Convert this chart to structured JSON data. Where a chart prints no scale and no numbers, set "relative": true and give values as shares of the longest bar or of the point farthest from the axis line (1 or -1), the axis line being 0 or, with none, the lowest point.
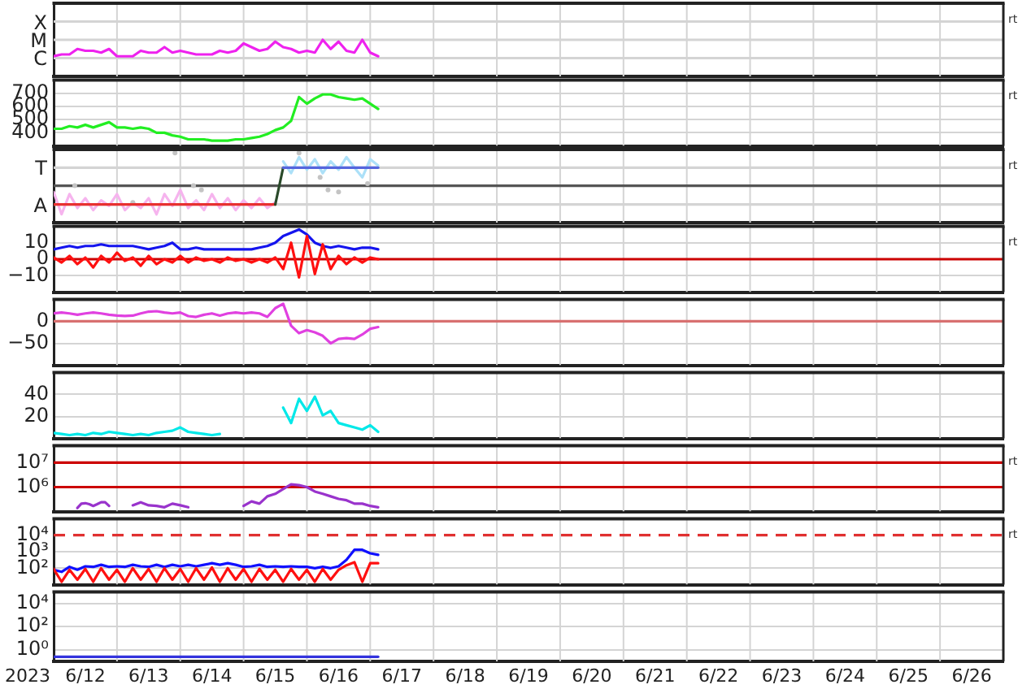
{
  "chart_data": [
    {
      "type": "line",
      "relative": true,
      "x": [
        "2023-06-12T00:00",
        "2023-06-12T03:00",
        "2023-06-12T06:00",
        "2023-06-12T09:00",
        "2023-06-12T12:00",
        "2023-06-12T15:00",
        "2023-06-12T18:00",
        "2023-06-12T21:00",
        "2023-06-13T00:00",
        "2023-06-13T03:00",
        "2023-06-13T06:00",
        "2023-06-13T09:00",
        "2023-06-13T12:00",
        "2023-06-13T15:00",
        "2023-06-13T18:00",
        "2023-06-13T21:00",
        "2023-06-14T00:00",
        "2023-06-14T03:00",
        "2023-06-14T06:00",
        "2023-06-14T09:00",
        "2023-06-14T12:00",
        "2023-06-14T15:00",
        "2023-06-14T18:00",
        "2023-06-14T21:00",
        "2023-06-15T00:00",
        "2023-06-15T03:00",
        "2023-06-15T06:00",
        "2023-06-15T09:00",
        "2023-06-15T12:00",
        "2023-06-15T15:00",
        "2023-06-15T18:00",
        "2023-06-15T21:00",
        "2023-06-16T00:00",
        "2023-06-16T03:00",
        "2023-06-16T06:00",
        "2023-06-16T09:00",
        "2023-06-16T12:00",
        "2023-06-16T15:00",
        "2023-06-16T18:00",
        "2023-06-16T21:00",
        "2023-06-17T00:00",
        "2023-06-17T03:00"
      ],
      "series": [
        {
          "color": "#ee22ee",
          "values": [
            0.55,
            0.6,
            0.6,
            0.75,
            0.7,
            0.7,
            0.65,
            0.75,
            0.55,
            0.55,
            0.55,
            0.7,
            0.65,
            0.65,
            0.8,
            0.65,
            0.7,
            0.65,
            0.6,
            0.6,
            0.6,
            0.7,
            0.65,
            0.7,
            0.9,
            0.8,
            0.7,
            0.75,
            0.95,
            0.8,
            0.75,
            0.65,
            0.7,
            0.65,
            1,
            0.75,
            0.95,
            0.7,
            0.65,
            1,
            0.65,
            0.55
          ]
        }
      ],
      "xlim": [
        "2023-06-12",
        "2023-06-27"
      ],
      "xticks": [
        {
          "value": "2023-06-13",
          "label": null
        },
        {
          "value": "2023-06-14",
          "label": null
        },
        {
          "value": "2023-06-15",
          "label": null
        },
        {
          "value": "2023-06-16",
          "label": null
        },
        {
          "value": "2023-06-17",
          "label": null
        },
        {
          "value": "2023-06-18",
          "label": null
        },
        {
          "value": "2023-06-19",
          "label": null
        },
        {
          "value": "2023-06-20",
          "label": null
        },
        {
          "value": "2023-06-21",
          "label": null
        },
        {
          "value": "2023-06-22",
          "label": null
        },
        {
          "value": "2023-06-23",
          "label": null
        },
        {
          "value": "2023-06-24",
          "label": null
        },
        {
          "value": "2023-06-25",
          "label": null
        },
        {
          "value": "2023-06-26",
          "label": null
        }
      ],
      "ref_lines": [
        {
          "axis": "y",
          "value": 1.5,
          "label": "X",
          "color": "#d4d4d4"
        },
        {
          "axis": "y",
          "value": 1,
          "label": "M",
          "color": "#d4d4d4"
        },
        {
          "axis": "y",
          "value": 0.5,
          "label": "C",
          "color": "#d4d4d4"
        }
      ],
      "grid": "x",
      "tick_labels": false,
      "annotations": [
        "rt"
      ]
    },
    {
      "type": "line",
      "x": [
        "2023-06-12T00:00",
        "2023-06-12T03:00",
        "2023-06-12T06:00",
        "2023-06-12T09:00",
        "2023-06-12T12:00",
        "2023-06-12T15:00",
        "2023-06-12T18:00",
        "2023-06-12T21:00",
        "2023-06-13T00:00",
        "2023-06-13T03:00",
        "2023-06-13T06:00",
        "2023-06-13T09:00",
        "2023-06-13T12:00",
        "2023-06-13T15:00",
        "2023-06-13T18:00",
        "2023-06-13T21:00",
        "2023-06-14T00:00",
        "2023-06-14T03:00",
        "2023-06-14T06:00",
        "2023-06-14T09:00",
        "2023-06-14T12:00",
        "2023-06-14T15:00",
        "2023-06-14T18:00",
        "2023-06-14T21:00",
        "2023-06-15T00:00",
        "2023-06-15T03:00",
        "2023-06-15T06:00",
        "2023-06-15T09:00",
        "2023-06-15T12:00",
        "2023-06-15T15:00",
        "2023-06-15T18:00",
        "2023-06-15T21:00",
        "2023-06-16T00:00",
        "2023-06-16T03:00",
        "2023-06-16T06:00",
        "2023-06-16T09:00",
        "2023-06-16T12:00",
        "2023-06-16T15:00",
        "2023-06-16T18:00",
        "2023-06-16T21:00",
        "2023-06-17T00:00",
        "2023-06-17T03:00"
      ],
      "series": [
        {
          "color": "#22ee22",
          "values": [
            430,
            430,
            450,
            440,
            460,
            440,
            460,
            480,
            440,
            440,
            430,
            440,
            430,
            400,
            400,
            380,
            370,
            350,
            350,
            350,
            340,
            340,
            340,
            350,
            350,
            360,
            370,
            390,
            420,
            440,
            490,
            670,
            620,
            660,
            690,
            690,
            670,
            660,
            650,
            660,
            620,
            580
          ]
        }
      ],
      "xlim": [
        "2023-06-12",
        "2023-06-27"
      ],
      "xticks": [
        {
          "value": "2023-06-13",
          "label": null
        },
        {
          "value": "2023-06-14",
          "label": null
        },
        {
          "value": "2023-06-15",
          "label": null
        },
        {
          "value": "2023-06-16",
          "label": null
        },
        {
          "value": "2023-06-17",
          "label": null
        },
        {
          "value": "2023-06-18",
          "label": null
        },
        {
          "value": "2023-06-19",
          "label": null
        },
        {
          "value": "2023-06-20",
          "label": null
        },
        {
          "value": "2023-06-21",
          "label": null
        },
        {
          "value": "2023-06-22",
          "label": null
        },
        {
          "value": "2023-06-23",
          "label": null
        },
        {
          "value": "2023-06-24",
          "label": null
        },
        {
          "value": "2023-06-25",
          "label": null
        },
        {
          "value": "2023-06-26",
          "label": null
        }
      ],
      "ylim": [
        300,
        800
      ],
      "yticks": [
        700,
        600,
        500,
        400
      ],
      "grid": true,
      "tick_labels": "y",
      "annotations": [
        "rt"
      ]
    },
    {
      "type": "line",
      "relative": true,
      "x": [
        "2023-06-12T00:00",
        "2023-06-12T03:00",
        "2023-06-12T06:00",
        "2023-06-12T09:00",
        "2023-06-12T12:00",
        "2023-06-12T15:00",
        "2023-06-12T18:00",
        "2023-06-12T21:00",
        "2023-06-13T00:00",
        "2023-06-13T03:00",
        "2023-06-13T06:00",
        "2023-06-13T09:00",
        "2023-06-13T12:00",
        "2023-06-13T15:00",
        "2023-06-13T18:00",
        "2023-06-13T21:00",
        "2023-06-14T00:00",
        "2023-06-14T03:00",
        "2023-06-14T06:00",
        "2023-06-14T09:00",
        "2023-06-14T12:00",
        "2023-06-14T15:00",
        "2023-06-14T18:00",
        "2023-06-14T21:00",
        "2023-06-15T00:00",
        "2023-06-15T03:00",
        "2023-06-15T06:00",
        "2023-06-15T09:00",
        "2023-06-15T12:00",
        "2023-06-15T15:00",
        "2023-06-15T18:00",
        "2023-06-15T21:00",
        "2023-06-16T00:00",
        "2023-06-16T03:00",
        "2023-06-16T06:00",
        "2023-06-16T09:00",
        "2023-06-16T12:00",
        "2023-06-16T15:00",
        "2023-06-16T18:00",
        "2023-06-16T21:00",
        "2023-06-17T00:00",
        "2023-06-17T03:00"
      ],
      "series": [
        {
          "color": "#f6b4ee",
          "values": [
            0.44,
            0.12,
            0.41,
            0.21,
            0.35,
            0.18,
            0.32,
            0.24,
            0.41,
            0.18,
            0.29,
            0.21,
            0.35,
            0.12,
            0.41,
            0.24,
            0.47,
            0.21,
            0.32,
            0.18,
            0.41,
            0.21,
            0.35,
            0.18,
            0.32,
            0.21,
            0.35,
            0.21,
            0.29,
            null,
            null,
            null,
            null,
            null,
            null,
            null,
            null,
            null,
            null,
            null,
            null,
            null
          ]
        },
        {
          "color": "#ace0f8",
          "values": [
            null,
            null,
            null,
            null,
            null,
            null,
            null,
            null,
            null,
            null,
            null,
            null,
            null,
            null,
            null,
            null,
            null,
            null,
            null,
            null,
            null,
            null,
            null,
            null,
            null,
            null,
            null,
            null,
            null,
            0.88,
            0.71,
            0.94,
            0.76,
            0.91,
            0.71,
            0.88,
            0.76,
            0.94,
            0.79,
            0.65,
            0.91,
            0.82
          ]
        },
        {
          "type": "scatter",
          "marker": "circle",
          "color": "#c4c4c4",
          "x": [
            "2023-06-12T08:00",
            "2023-06-13T06:00",
            "2023-06-13T22:00",
            "2023-06-14T05:00",
            "2023-06-14T08:00",
            "2023-06-15T21:00",
            "2023-06-16T05:00",
            "2023-06-16T08:00",
            "2023-06-16T12:00",
            "2023-06-16T23:00"
          ],
          "values": [
            0.53,
            0.29,
            1,
            0.53,
            0.47,
            1,
            0.65,
            0.47,
            0.44,
            0.56
          ]
        },
        {
          "color": "#e83030",
          "x": [
            "2023-06-12T00:00",
            "2023-06-15T12:00"
          ],
          "values": [
            0.26,
            0.26
          ]
        },
        {
          "color": "#2a4a2a",
          "x": [
            "2023-06-15T12:00",
            "2023-06-15T15:00"
          ],
          "values": [
            0.26,
            0.79
          ]
        },
        {
          "color": "#5566dd",
          "x": [
            "2023-06-15T15:00",
            "2023-06-17T03:00"
          ],
          "values": [
            0.79,
            0.79
          ]
        }
      ],
      "xlim": [
        "2023-06-12",
        "2023-06-27"
      ],
      "xticks": [
        {
          "value": "2023-06-13",
          "label": null
        },
        {
          "value": "2023-06-14",
          "label": null
        },
        {
          "value": "2023-06-15",
          "label": null
        },
        {
          "value": "2023-06-16",
          "label": null
        },
        {
          "value": "2023-06-17",
          "label": null
        },
        {
          "value": "2023-06-18",
          "label": null
        },
        {
          "value": "2023-06-19",
          "label": null
        },
        {
          "value": "2023-06-20",
          "label": null
        },
        {
          "value": "2023-06-21",
          "label": null
        },
        {
          "value": "2023-06-22",
          "label": null
        },
        {
          "value": "2023-06-23",
          "label": null
        },
        {
          "value": "2023-06-24",
          "label": null
        },
        {
          "value": "2023-06-25",
          "label": null
        },
        {
          "value": "2023-06-26",
          "label": null
        }
      ],
      "ref_lines": [
        {
          "axis": "y",
          "value": 0.79,
          "label": "T",
          "color": "#d4d4d4"
        },
        {
          "axis": "y",
          "value": 0.53,
          "color": "#555555"
        },
        {
          "axis": "y",
          "value": 0.26,
          "label": "A",
          "color": "#d4d4d4"
        }
      ],
      "grid": "x",
      "tick_labels": false,
      "annotations": [
        "rt"
      ]
    },
    {
      "type": "line",
      "x": [
        "2023-06-12T00:00",
        "2023-06-12T03:00",
        "2023-06-12T06:00",
        "2023-06-12T09:00",
        "2023-06-12T12:00",
        "2023-06-12T15:00",
        "2023-06-12T18:00",
        "2023-06-12T21:00",
        "2023-06-13T00:00",
        "2023-06-13T03:00",
        "2023-06-13T06:00",
        "2023-06-13T09:00",
        "2023-06-13T12:00",
        "2023-06-13T15:00",
        "2023-06-13T18:00",
        "2023-06-13T21:00",
        "2023-06-14T00:00",
        "2023-06-14T03:00",
        "2023-06-14T06:00",
        "2023-06-14T09:00",
        "2023-06-14T12:00",
        "2023-06-14T15:00",
        "2023-06-14T18:00",
        "2023-06-14T21:00",
        "2023-06-15T00:00",
        "2023-06-15T03:00",
        "2023-06-15T06:00",
        "2023-06-15T09:00",
        "2023-06-15T12:00",
        "2023-06-15T15:00",
        "2023-06-15T18:00",
        "2023-06-15T21:00",
        "2023-06-16T00:00",
        "2023-06-16T03:00",
        "2023-06-16T06:00",
        "2023-06-16T09:00",
        "2023-06-16T12:00",
        "2023-06-16T15:00",
        "2023-06-16T18:00",
        "2023-06-16T21:00",
        "2023-06-17T00:00",
        "2023-06-17T03:00"
      ],
      "series": [
        {
          "color": "#1414ee",
          "values": [
            6,
            7,
            8,
            7,
            8,
            8,
            9,
            8,
            8,
            8,
            8,
            7,
            6,
            7,
            8,
            10,
            6,
            6,
            7,
            6,
            6,
            6,
            6,
            6,
            6,
            6,
            7,
            8,
            10,
            14,
            16,
            18,
            15,
            10,
            8,
            7,
            8,
            7,
            6,
            7,
            7,
            6
          ]
        },
        {
          "color": "#ff1010",
          "values": [
            1,
            -2,
            2,
            -3,
            1,
            -5,
            2,
            -2,
            4,
            -1,
            1,
            -4,
            2,
            -3,
            0,
            -2,
            2,
            -2,
            1,
            -1,
            0,
            -2,
            1,
            -1,
            0,
            -2,
            0,
            -2,
            1,
            -6,
            10,
            -11,
            14,
            -9,
            9,
            -6,
            2,
            -3,
            1,
            -2,
            1,
            0
          ]
        }
      ],
      "xlim": [
        "2023-06-12",
        "2023-06-27"
      ],
      "xticks": [
        {
          "value": "2023-06-13",
          "label": null
        },
        {
          "value": "2023-06-14",
          "label": null
        },
        {
          "value": "2023-06-15",
          "label": null
        },
        {
          "value": "2023-06-16",
          "label": null
        },
        {
          "value": "2023-06-17",
          "label": null
        },
        {
          "value": "2023-06-18",
          "label": null
        },
        {
          "value": "2023-06-19",
          "label": null
        },
        {
          "value": "2023-06-20",
          "label": null
        },
        {
          "value": "2023-06-21",
          "label": null
        },
        {
          "value": "2023-06-22",
          "label": null
        },
        {
          "value": "2023-06-23",
          "label": null
        },
        {
          "value": "2023-06-24",
          "label": null
        },
        {
          "value": "2023-06-25",
          "label": null
        },
        {
          "value": "2023-06-26",
          "label": null
        }
      ],
      "ylim": [
        -20,
        20
      ],
      "yticks": [
        10,
        0,
        {
          "value": -10,
          "label": "−10"
        }
      ],
      "ref_lines": [
        {
          "axis": "y",
          "value": 0,
          "color": "#cc0000"
        }
      ],
      "grid": true,
      "tick_labels": "y",
      "annotations": [
        "rt"
      ]
    },
    {
      "type": "line",
      "x": [
        "2023-06-12T00:00",
        "2023-06-12T03:00",
        "2023-06-12T06:00",
        "2023-06-12T09:00",
        "2023-06-12T12:00",
        "2023-06-12T15:00",
        "2023-06-12T18:00",
        "2023-06-12T21:00",
        "2023-06-13T00:00",
        "2023-06-13T03:00",
        "2023-06-13T06:00",
        "2023-06-13T09:00",
        "2023-06-13T12:00",
        "2023-06-13T15:00",
        "2023-06-13T18:00",
        "2023-06-13T21:00",
        "2023-06-14T00:00",
        "2023-06-14T03:00",
        "2023-06-14T06:00",
        "2023-06-14T09:00",
        "2023-06-14T12:00",
        "2023-06-14T15:00",
        "2023-06-14T18:00",
        "2023-06-14T21:00",
        "2023-06-15T00:00",
        "2023-06-15T03:00",
        "2023-06-15T06:00",
        "2023-06-15T09:00",
        "2023-06-15T12:00",
        "2023-06-15T15:00",
        "2023-06-15T18:00",
        "2023-06-15T21:00",
        "2023-06-16T00:00",
        "2023-06-16T03:00",
        "2023-06-16T06:00",
        "2023-06-16T09:00",
        "2023-06-16T12:00",
        "2023-06-16T15:00",
        "2023-06-16T18:00",
        "2023-06-16T21:00",
        "2023-06-17T00:00",
        "2023-06-17T03:00"
      ],
      "series": [
        {
          "color": "#e040e0",
          "values": [
            18,
            20,
            18,
            15,
            18,
            20,
            18,
            15,
            13,
            12,
            13,
            18,
            22,
            23,
            20,
            18,
            20,
            12,
            10,
            15,
            18,
            13,
            18,
            20,
            18,
            20,
            18,
            10,
            30,
            40,
            -10,
            -27,
            -20,
            -25,
            -33,
            -50,
            -40,
            -38,
            -40,
            -30,
            -17,
            -13
          ]
        }
      ],
      "xlim": [
        "2023-06-12",
        "2023-06-27"
      ],
      "xticks": [
        {
          "value": "2023-06-13",
          "label": null
        },
        {
          "value": "2023-06-14",
          "label": null
        },
        {
          "value": "2023-06-15",
          "label": null
        },
        {
          "value": "2023-06-16",
          "label": null
        },
        {
          "value": "2023-06-17",
          "label": null
        },
        {
          "value": "2023-06-18",
          "label": null
        },
        {
          "value": "2023-06-19",
          "label": null
        },
        {
          "value": "2023-06-20",
          "label": null
        },
        {
          "value": "2023-06-21",
          "label": null
        },
        {
          "value": "2023-06-22",
          "label": null
        },
        {
          "value": "2023-06-23",
          "label": null
        },
        {
          "value": "2023-06-24",
          "label": null
        },
        {
          "value": "2023-06-25",
          "label": null
        },
        {
          "value": "2023-06-26",
          "label": null
        }
      ],
      "ylim": [
        -100,
        50
      ],
      "yticks": [
        0,
        {
          "value": -50,
          "label": "−50"
        }
      ],
      "ref_lines": [
        {
          "axis": "y",
          "value": 0,
          "color": "#d87070"
        }
      ],
      "grid": true,
      "tick_labels": "y"
    },
    {
      "type": "line",
      "x": [
        "2023-06-12T00:00",
        "2023-06-12T03:00",
        "2023-06-12T06:00",
        "2023-06-12T09:00",
        "2023-06-12T12:00",
        "2023-06-12T15:00",
        "2023-06-12T18:00",
        "2023-06-12T21:00",
        "2023-06-13T00:00",
        "2023-06-13T03:00",
        "2023-06-13T06:00",
        "2023-06-13T09:00",
        "2023-06-13T12:00",
        "2023-06-13T15:00",
        "2023-06-13T18:00",
        "2023-06-13T21:00",
        "2023-06-14T00:00",
        "2023-06-14T03:00",
        "2023-06-14T06:00",
        "2023-06-14T09:00",
        "2023-06-14T12:00",
        "2023-06-14T15:00",
        "2023-06-14T18:00",
        "2023-06-14T21:00",
        "2023-06-15T00:00",
        "2023-06-15T03:00",
        "2023-06-15T06:00",
        "2023-06-15T09:00",
        "2023-06-15T12:00",
        "2023-06-15T15:00",
        "2023-06-15T18:00",
        "2023-06-15T21:00",
        "2023-06-16T00:00",
        "2023-06-16T03:00",
        "2023-06-16T06:00",
        "2023-06-16T09:00",
        "2023-06-16T12:00",
        "2023-06-16T15:00",
        "2023-06-16T18:00",
        "2023-06-16T21:00",
        "2023-06-17T00:00",
        "2023-06-17T03:00"
      ],
      "series": [
        {
          "color": "#00e8e8",
          "values": [
            5,
            4,
            3,
            4,
            3,
            5,
            4,
            6,
            5,
            4,
            3,
            4,
            3,
            5,
            6,
            7,
            10,
            6,
            5,
            4,
            3,
            4,
            null,
            null,
            null,
            null,
            null,
            null,
            null,
            28,
            14,
            36,
            25,
            38,
            21,
            25,
            14,
            12,
            10,
            8,
            12,
            6
          ]
        }
      ],
      "xlim": [
        "2023-06-12",
        "2023-06-27"
      ],
      "xticks": [
        {
          "value": "2023-06-13",
          "label": null
        },
        {
          "value": "2023-06-14",
          "label": null
        },
        {
          "value": "2023-06-15",
          "label": null
        },
        {
          "value": "2023-06-16",
          "label": null
        },
        {
          "value": "2023-06-17",
          "label": null
        },
        {
          "value": "2023-06-18",
          "label": null
        },
        {
          "value": "2023-06-19",
          "label": null
        },
        {
          "value": "2023-06-20",
          "label": null
        },
        {
          "value": "2023-06-21",
          "label": null
        },
        {
          "value": "2023-06-22",
          "label": null
        },
        {
          "value": "2023-06-23",
          "label": null
        },
        {
          "value": "2023-06-24",
          "label": null
        },
        {
          "value": "2023-06-25",
          "label": null
        },
        {
          "value": "2023-06-26",
          "label": null
        }
      ],
      "ylim": [
        0,
        60
      ],
      "yticks": [
        40,
        20
      ],
      "grid": true,
      "tick_labels": "y"
    },
    {
      "type": "line",
      "x": [
        "2023-06-12T09:00",
        "2023-06-12T10:30",
        "2023-06-12T12:00",
        "2023-06-12T13:30",
        "2023-06-12T15:00",
        "2023-06-12T16:30",
        "2023-06-12T18:00",
        "2023-06-12T19:30",
        "2023-06-12T21:00",
        "2023-06-13T00:00",
        "2023-06-13T03:00",
        "2023-06-13T06:00",
        "2023-06-13T09:00",
        "2023-06-13T12:00",
        "2023-06-13T15:00",
        "2023-06-13T18:00",
        "2023-06-13T21:00",
        "2023-06-14T00:00",
        "2023-06-14T03:00",
        "2023-06-14T06:00",
        "2023-06-14T09:00",
        "2023-06-14T12:00",
        "2023-06-14T15:00",
        "2023-06-14T18:00",
        "2023-06-14T21:00",
        "2023-06-15T00:00",
        "2023-06-15T03:00",
        "2023-06-15T06:00",
        "2023-06-15T09:00",
        "2023-06-15T12:00",
        "2023-06-15T15:00",
        "2023-06-15T18:00",
        "2023-06-15T21:00",
        "2023-06-16T00:00",
        "2023-06-16T03:00",
        "2023-06-16T06:00",
        "2023-06-16T09:00",
        "2023-06-16T12:00",
        "2023-06-16T15:00",
        "2023-06-16T18:00",
        "2023-06-16T21:00",
        "2023-06-17T00:00",
        "2023-06-17T03:00"
      ],
      "series": [
        {
          "color": "#9933cc",
          "values": [
            140000,
            210000,
            220000,
            200000,
            170000,
            200000,
            240000,
            240000,
            170000,
            null,
            null,
            180000,
            240000,
            180000,
            170000,
            150000,
            210000,
            180000,
            150000,
            null,
            null,
            null,
            null,
            null,
            null,
            170000,
            260000,
            210000,
            420000,
            530000,
            830000,
            1300000,
            1200000,
            1000000,
            660000,
            530000,
            420000,
            330000,
            290000,
            210000,
            210000,
            170000,
            150000
          ]
        }
      ],
      "xlim": [
        "2023-06-12",
        "2023-06-27"
      ],
      "xticks": [
        {
          "value": "2023-06-13",
          "label": null
        },
        {
          "value": "2023-06-14",
          "label": null
        },
        {
          "value": "2023-06-15",
          "label": null
        },
        {
          "value": "2023-06-16",
          "label": null
        },
        {
          "value": "2023-06-17",
          "label": null
        },
        {
          "value": "2023-06-18",
          "label": null
        },
        {
          "value": "2023-06-19",
          "label": null
        },
        {
          "value": "2023-06-20",
          "label": null
        },
        {
          "value": "2023-06-21",
          "label": null
        },
        {
          "value": "2023-06-22",
          "label": null
        },
        {
          "value": "2023-06-23",
          "label": null
        },
        {
          "value": "2023-06-24",
          "label": null
        },
        {
          "value": "2023-06-25",
          "label": null
        },
        {
          "value": "2023-06-26",
          "label": null
        }
      ],
      "ylim": [
        100000,
        50000000
      ],
      "yticks": [
        {
          "value": 10000000,
          "label": "10⁷"
        },
        {
          "value": 1000000,
          "label": "10⁶"
        }
      ],
      "log": true,
      "ref_lines": [
        {
          "axis": "y",
          "value": 10000000,
          "color": "#cc0000"
        },
        {
          "axis": "y",
          "value": 1000000,
          "color": "#cc0000"
        }
      ],
      "grid": true,
      "tick_labels": "y",
      "annotations": [
        "rt"
      ]
    },
    {
      "type": "line",
      "x": [
        "2023-06-12T00:00",
        "2023-06-12T03:00",
        "2023-06-12T06:00",
        "2023-06-12T09:00",
        "2023-06-12T12:00",
        "2023-06-12T15:00",
        "2023-06-12T18:00",
        "2023-06-12T21:00",
        "2023-06-13T00:00",
        "2023-06-13T03:00",
        "2023-06-13T06:00",
        "2023-06-13T09:00",
        "2023-06-13T12:00",
        "2023-06-13T15:00",
        "2023-06-13T18:00",
        "2023-06-13T21:00",
        "2023-06-14T00:00",
        "2023-06-14T03:00",
        "2023-06-14T06:00",
        "2023-06-14T09:00",
        "2023-06-14T12:00",
        "2023-06-14T15:00",
        "2023-06-14T18:00",
        "2023-06-14T21:00",
        "2023-06-15T00:00",
        "2023-06-15T03:00",
        "2023-06-15T06:00",
        "2023-06-15T09:00",
        "2023-06-15T12:00",
        "2023-06-15T15:00",
        "2023-06-15T18:00",
        "2023-06-15T21:00",
        "2023-06-16T00:00",
        "2023-06-16T03:00",
        "2023-06-16T06:00",
        "2023-06-16T09:00",
        "2023-06-16T12:00",
        "2023-06-16T15:00",
        "2023-06-16T18:00",
        "2023-06-16T21:00",
        "2023-06-17T00:00",
        "2023-06-17T03:00"
      ],
      "series": [
        {
          "color": "#1010ff",
          "values": [
            80,
            60,
            120,
            80,
            130,
            120,
            160,
            120,
            130,
            120,
            160,
            130,
            120,
            160,
            120,
            160,
            130,
            160,
            130,
            160,
            200,
            160,
            200,
            160,
            120,
            130,
            160,
            120,
            130,
            120,
            130,
            120,
            120,
            100,
            120,
            100,
            130,
            320,
            1300,
            1300,
            800,
            640
          ]
        },
        {
          "color": "#ff1010",
          "values": [
            90,
            15,
            80,
            20,
            90,
            15,
            100,
            20,
            80,
            15,
            100,
            20,
            90,
            15,
            100,
            20,
            90,
            15,
            100,
            20,
            110,
            15,
            100,
            20,
            90,
            15,
            90,
            20,
            80,
            15,
            90,
            20,
            80,
            15,
            90,
            20,
            80,
            150,
            230,
            15,
            200,
            200
          ]
        }
      ],
      "xlim": [
        "2023-06-12",
        "2023-06-27"
      ],
      "xticks": [
        {
          "value": "2023-06-13",
          "label": null
        },
        {
          "value": "2023-06-14",
          "label": null
        },
        {
          "value": "2023-06-15",
          "label": null
        },
        {
          "value": "2023-06-16",
          "label": null
        },
        {
          "value": "2023-06-17",
          "label": null
        },
        {
          "value": "2023-06-18",
          "label": null
        },
        {
          "value": "2023-06-19",
          "label": null
        },
        {
          "value": "2023-06-20",
          "label": null
        },
        {
          "value": "2023-06-21",
          "label": null
        },
        {
          "value": "2023-06-22",
          "label": null
        },
        {
          "value": "2023-06-23",
          "label": null
        },
        {
          "value": "2023-06-24",
          "label": null
        },
        {
          "value": "2023-06-25",
          "label": null
        },
        {
          "value": "2023-06-26",
          "label": null
        }
      ],
      "ylim": [
        10,
        100000
      ],
      "yticks": [
        {
          "value": 10000,
          "label": "10⁴"
        },
        {
          "value": 1000,
          "label": "10³"
        },
        {
          "value": 100,
          "label": "10²"
        }
      ],
      "log": true,
      "ref_lines": [
        {
          "axis": "y",
          "value": 10000,
          "color": "#e03030",
          "line_style": "dashed"
        }
      ],
      "grid": true,
      "tick_labels": "y",
      "annotations": [
        "rt"
      ]
    },
    {
      "type": "line",
      "x": [
        "2023-06-12T00:00",
        "2023-06-17T03:00"
      ],
      "series": [
        {
          "color": "#3333dd",
          "values": [
            0.25,
            0.25
          ]
        }
      ],
      "xlim": [
        "2023-06-12",
        "2023-06-27"
      ],
      "xticks": [
        {
          "value": "2023-06-12T12:00",
          "label": "6/12"
        },
        {
          "value": "2023-06-13",
          "label": null
        },
        {
          "value": "2023-06-13T12:00",
          "label": "6/13"
        },
        {
          "value": "2023-06-14",
          "label": null
        },
        {
          "value": "2023-06-14T12:00",
          "label": "6/14"
        },
        {
          "value": "2023-06-15",
          "label": null
        },
        {
          "value": "2023-06-15T12:00",
          "label": "6/15"
        },
        {
          "value": "2023-06-16",
          "label": null
        },
        {
          "value": "2023-06-16T12:00",
          "label": "6/16"
        },
        {
          "value": "2023-06-17",
          "label": null
        },
        {
          "value": "2023-06-17T12:00",
          "label": "6/17"
        },
        {
          "value": "2023-06-18",
          "label": null
        },
        {
          "value": "2023-06-18T12:00",
          "label": "6/18"
        },
        {
          "value": "2023-06-19",
          "label": null
        },
        {
          "value": "2023-06-19T12:00",
          "label": "6/19"
        },
        {
          "value": "2023-06-20",
          "label": null
        },
        {
          "value": "2023-06-20T12:00",
          "label": "6/20"
        },
        {
          "value": "2023-06-21",
          "label": null
        },
        {
          "value": "2023-06-21T12:00",
          "label": "6/21"
        },
        {
          "value": "2023-06-22",
          "label": null
        },
        {
          "value": "2023-06-22T12:00",
          "label": "6/22"
        },
        {
          "value": "2023-06-23",
          "label": null
        },
        {
          "value": "2023-06-23T12:00",
          "label": "6/23"
        },
        {
          "value": "2023-06-24",
          "label": null
        },
        {
          "value": "2023-06-24T12:00",
          "label": "6/24"
        },
        {
          "value": "2023-06-25",
          "label": null
        },
        {
          "value": "2023-06-25T12:00",
          "label": "6/25"
        },
        {
          "value": "2023-06-26",
          "label": null
        },
        {
          "value": "2023-06-26T12:00",
          "label": "6/26"
        }
      ],
      "ylim": [
        0.1,
        100000
      ],
      "yticks": [
        {
          "value": 10000,
          "label": "10⁴"
        },
        {
          "value": 100,
          "label": "10²"
        },
        {
          "value": 1,
          "label": "10⁰"
        }
      ],
      "log": true,
      "grid": true,
      "xlabel": "2023"
    }
  ]
}
